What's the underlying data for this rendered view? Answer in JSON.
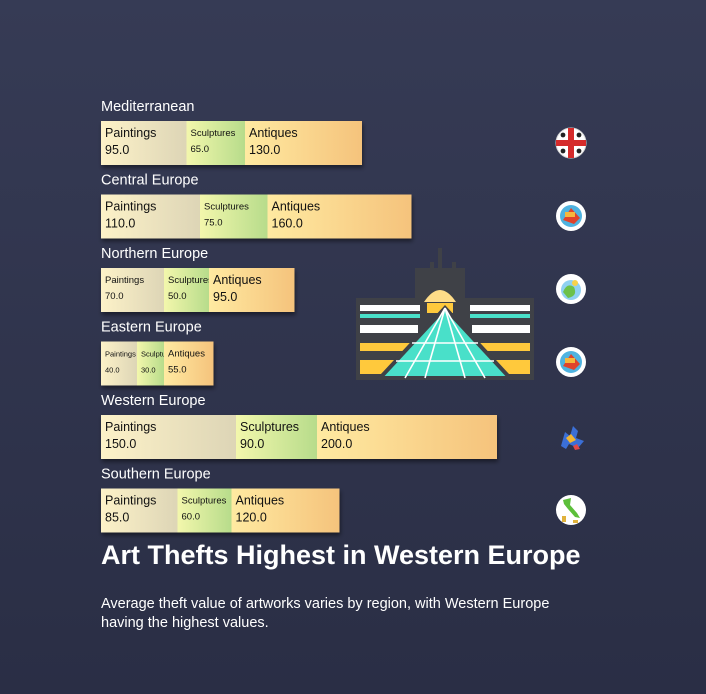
{
  "chart_data": {
    "type": "bar",
    "orientation": "horizontal-stacked",
    "title": "Art Thefts Highest in Western Europe",
    "subtitle": "Average theft value of artworks varies by region, with Western Europe having the highest values.",
    "categories": [
      "Mediterranean",
      "Central Europe",
      "Northern Europe",
      "Eastern Europe",
      "Western Europe",
      "Southern Europe"
    ],
    "series": [
      {
        "name": "Paintings",
        "values": [
          95.0,
          110.0,
          70.0,
          40.0,
          150.0,
          85.0
        ]
      },
      {
        "name": "Sculptures",
        "values": [
          65.0,
          75.0,
          50.0,
          30.0,
          90.0,
          60.0
        ]
      },
      {
        "name": "Antiques",
        "values": [
          130.0,
          160.0,
          95.0,
          55.0,
          200.0,
          120.0
        ]
      }
    ],
    "value_labels": [
      [
        "95.0",
        "65.0",
        "130.0"
      ],
      [
        "110.0",
        "75.0",
        "160.0"
      ],
      [
        "70.0",
        "50.0",
        "95.0"
      ],
      [
        "40.0",
        "30.0",
        "55.0"
      ],
      [
        "150.0",
        "90.0",
        "200.0"
      ],
      [
        "85.0",
        "60.0",
        "120.0"
      ]
    ],
    "series_colors": [
      [
        "#fdf2c8",
        "#ddd5b6"
      ],
      [
        "#f3f7ac",
        "#b7dc8b"
      ],
      [
        "#ffeaa1",
        "#f5c37c"
      ]
    ],
    "region_icons": [
      "sardinia-flag-icon",
      "region-emblem-icon",
      "globe-map-icon",
      "region-emblem-icon",
      "europe-map-icon",
      "italy-map-icon"
    ]
  }
}
